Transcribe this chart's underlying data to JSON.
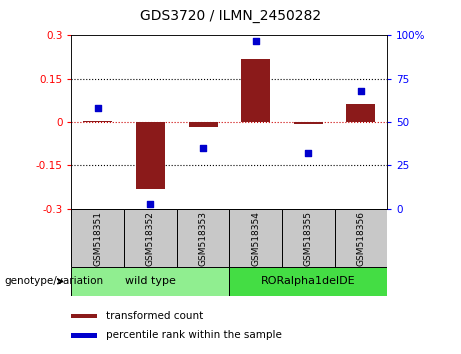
{
  "title": "GDS3720 / ILMN_2450282",
  "samples": [
    "GSM518351",
    "GSM518352",
    "GSM518353",
    "GSM518354",
    "GSM518355",
    "GSM518356"
  ],
  "transformed_count": [
    0.005,
    -0.23,
    -0.018,
    0.22,
    -0.008,
    0.062
  ],
  "percentile_rank": [
    58,
    3,
    35,
    97,
    32,
    68
  ],
  "ylim_left": [
    -0.3,
    0.3
  ],
  "ylim_right": [
    0,
    100
  ],
  "yticks_left": [
    -0.3,
    -0.15,
    0,
    0.15,
    0.3
  ],
  "yticks_right": [
    0,
    25,
    50,
    75,
    100
  ],
  "ytick_labels_left": [
    "-0.3",
    "-0.15",
    "0",
    "0.15",
    "0.3"
  ],
  "ytick_labels_right": [
    "0",
    "25",
    "50",
    "75",
    "100%"
  ],
  "hlines_dotted": [
    -0.15,
    0.15
  ],
  "hline_zero_color": "#CC0000",
  "bar_color": "#8B1A1A",
  "scatter_color": "#0000CD",
  "grid_color": "#000000",
  "groups": [
    {
      "label": "wild type",
      "indices": [
        0,
        1,
        2
      ],
      "color": "#90EE90"
    },
    {
      "label": "RORalpha1delDE",
      "indices": [
        3,
        4,
        5
      ],
      "color": "#44DD44"
    }
  ],
  "legend_bar_label": "transformed count",
  "legend_scatter_label": "percentile rank within the sample",
  "genotype_label": "genotype/variation",
  "bar_width": 0.55,
  "label_box_color": "#C8C8C8",
  "fig_width": 4.61,
  "fig_height": 3.54
}
